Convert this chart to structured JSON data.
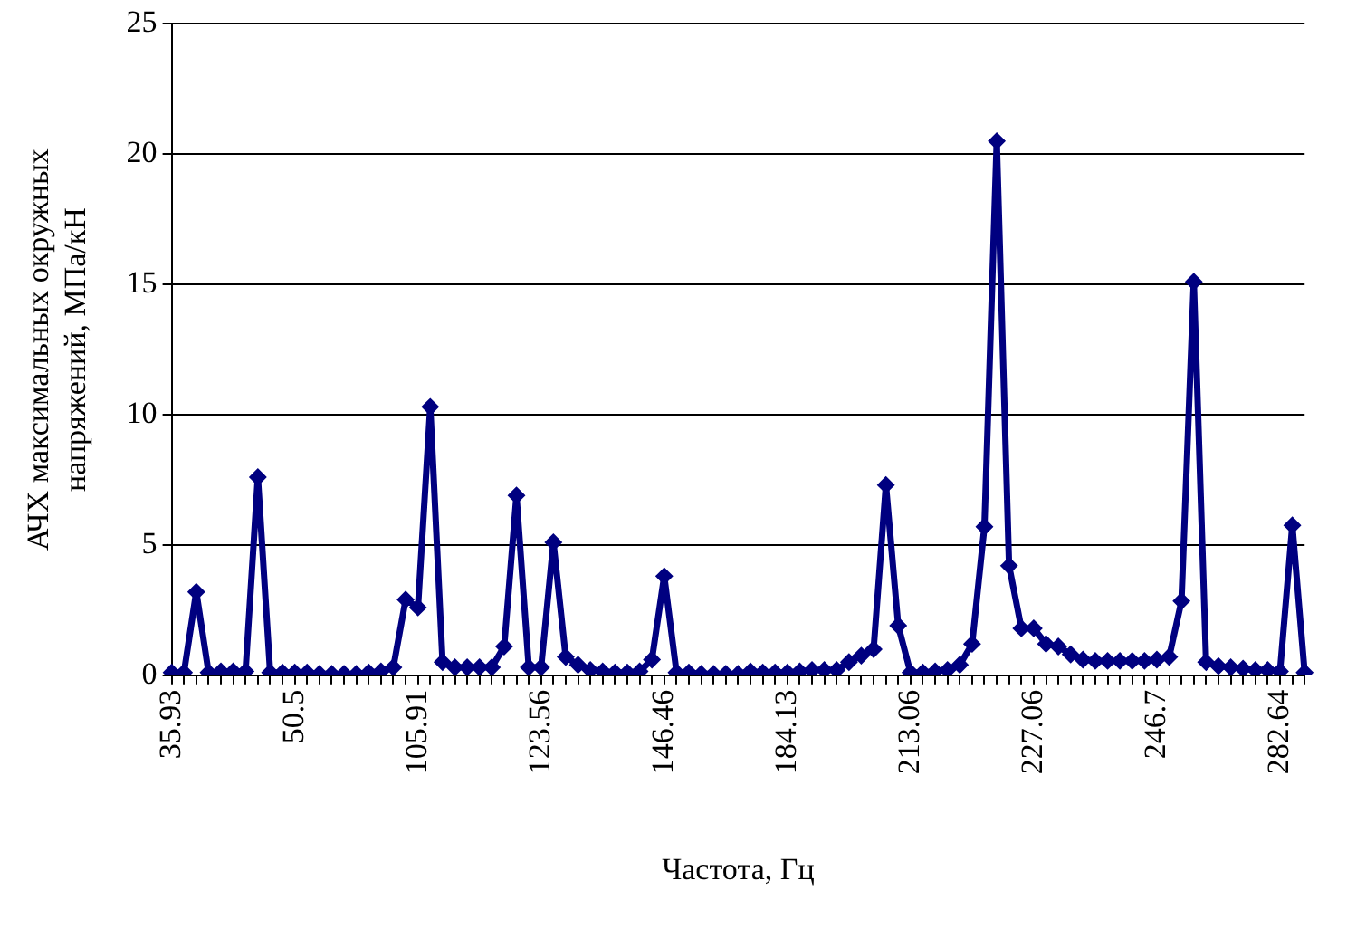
{
  "chart_data": {
    "type": "line",
    "xlabel": "Частота, Гц",
    "ylabel": "АЧХ максимальных окружных\nнапряжений, МПа/кН",
    "categories": [
      "35.93",
      null,
      null,
      null,
      null,
      null,
      null,
      null,
      null,
      null,
      "50.5",
      null,
      null,
      null,
      null,
      null,
      null,
      null,
      null,
      null,
      "105.91",
      null,
      null,
      null,
      null,
      null,
      null,
      null,
      null,
      null,
      "123.56",
      null,
      null,
      null,
      null,
      null,
      null,
      null,
      null,
      null,
      "146.46",
      null,
      null,
      null,
      null,
      null,
      null,
      null,
      null,
      null,
      "184.13",
      null,
      null,
      null,
      null,
      null,
      null,
      null,
      null,
      null,
      "213.06",
      null,
      null,
      null,
      null,
      null,
      null,
      null,
      null,
      null,
      "227.06",
      null,
      null,
      null,
      null,
      null,
      null,
      null,
      null,
      null,
      "246.7",
      null,
      null,
      null,
      null,
      null,
      null,
      null,
      null,
      null,
      "282.64",
      null,
      null
    ],
    "series": [
      {
        "color": "#000080",
        "values": [
          0.1,
          0.1,
          3.2,
          0.1,
          0.15,
          0.15,
          0.15,
          7.6,
          0.1,
          0.1,
          0.1,
          0.1,
          0.05,
          0.05,
          0.05,
          0.05,
          0.1,
          0.15,
          0.3,
          2.9,
          2.6,
          10.3,
          0.5,
          0.3,
          0.3,
          0.3,
          0.3,
          1.1,
          6.9,
          0.3,
          0.3,
          5.1,
          0.7,
          0.4,
          0.2,
          0.15,
          0.1,
          0.1,
          0.15,
          0.6,
          3.8,
          0.1,
          0.1,
          0.05,
          0.05,
          0.05,
          0.05,
          0.15,
          0.1,
          0.1,
          0.1,
          0.15,
          0.2,
          0.2,
          0.2,
          0.5,
          0.75,
          1.0,
          7.3,
          1.9,
          0.1,
          0.1,
          0.15,
          0.2,
          0.4,
          1.2,
          5.7,
          20.5,
          4.2,
          1.8,
          1.8,
          1.2,
          1.1,
          0.8,
          0.6,
          0.55,
          0.55,
          0.55,
          0.55,
          0.55,
          0.6,
          0.7,
          2.85,
          15.1,
          0.5,
          0.35,
          0.3,
          0.25,
          0.2,
          0.2,
          0.15,
          5.75,
          0.1
        ]
      }
    ],
    "ylim": [
      0,
      25
    ],
    "yticks": [
      0,
      5,
      10,
      15,
      20,
      25
    ],
    "grid": "y",
    "marker": "diamond",
    "line_style": "solid"
  }
}
